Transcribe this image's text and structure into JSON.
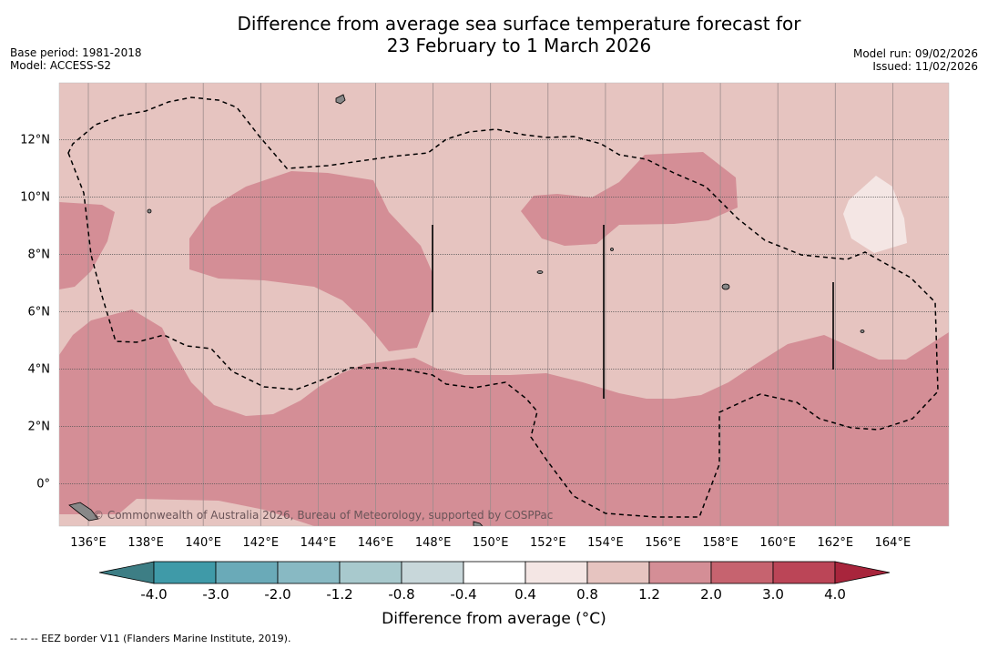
{
  "title_line1": "Difference from average sea surface temperature forecast for",
  "title_line2": "23 February to 1 March 2026",
  "base_period": "Base period: 1981-2018",
  "model": "Model: ACCESS-S2",
  "model_run": "Model run: 09/02/2026",
  "issued": "Issued: 11/02/2026",
  "lat_labels": [
    "12°N",
    "10°N",
    "8°N",
    "6°N",
    "4°N",
    "2°N",
    "0°"
  ],
  "lon_labels": [
    "136°E",
    "138°E",
    "140°E",
    "142°E",
    "144°E",
    "146°E",
    "148°E",
    "150°E",
    "152°E",
    "154°E",
    "156°E",
    "158°E",
    "160°E",
    "162°E",
    "164°E"
  ],
  "copyright": "© Commonwealth of Australia 2026, Bureau of Meteorology, supported by COSPPac",
  "colorbar": {
    "title": "Difference from average (°C)",
    "tick_labels": [
      "-4.0",
      "-3.0",
      "-2.0",
      "-1.2",
      "-0.8",
      "-0.4",
      "0.4",
      "0.8",
      "1.2",
      "2.0",
      "3.0",
      "4.0"
    ],
    "colors": [
      "#3f9aa8",
      "#6aaab8",
      "#88b9c3",
      "#a8c9cd",
      "#c8d7da",
      "#ffffff",
      "#f4e6e4",
      "#e6c4c0",
      "#d48e96",
      "#c6636f",
      "#bb4557"
    ],
    "under_color": "#3d7e85",
    "over_color": "#a8253c"
  },
  "footnote": "-- -- -- EEZ border V11 (Flanders Marine Institute, 2019)."
}
